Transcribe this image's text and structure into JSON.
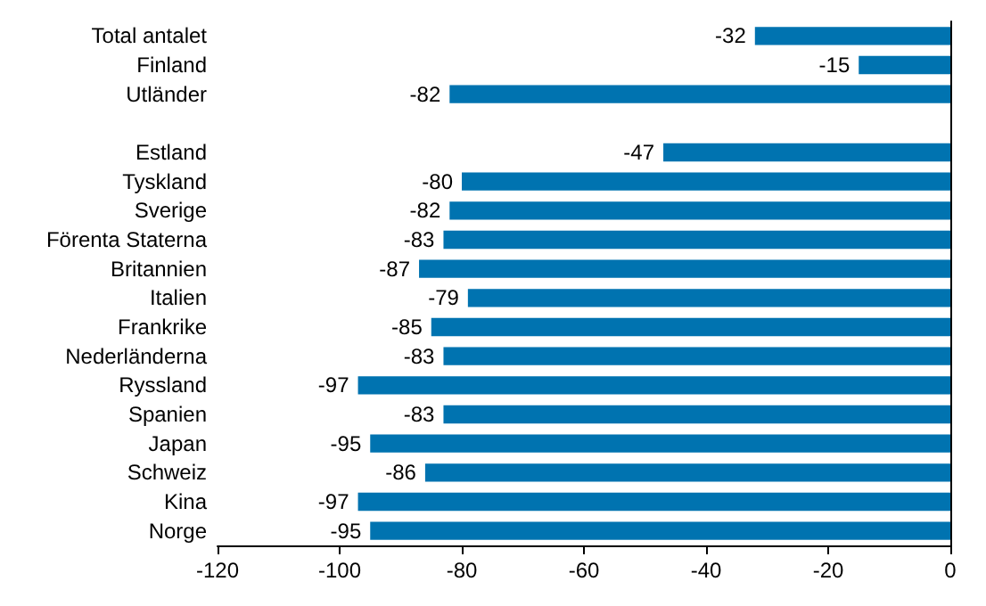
{
  "chart_data": {
    "type": "bar",
    "orientation": "horizontal",
    "categories": [
      "Total antalet",
      "Finland",
      "Utländer",
      null,
      "Estland",
      "Tyskland",
      "Sverige",
      "Förenta Staterna",
      "Britannien",
      "Italien",
      "Frankrike",
      "Nederländerna",
      "Ryssland",
      "Spanien",
      "Japan",
      "Schweiz",
      "Kina",
      "Norge"
    ],
    "values": [
      -32,
      -15,
      -82,
      null,
      -47,
      -80,
      -82,
      -83,
      -87,
      -79,
      -85,
      -83,
      -97,
      -83,
      -95,
      -86,
      -97,
      -95
    ],
    "color": "#0073b0",
    "xlim": [
      -120,
      0
    ],
    "xticks": [
      -120,
      -100,
      -80,
      -60,
      -40,
      -20,
      0
    ],
    "data_labels": true,
    "grid": false
  }
}
